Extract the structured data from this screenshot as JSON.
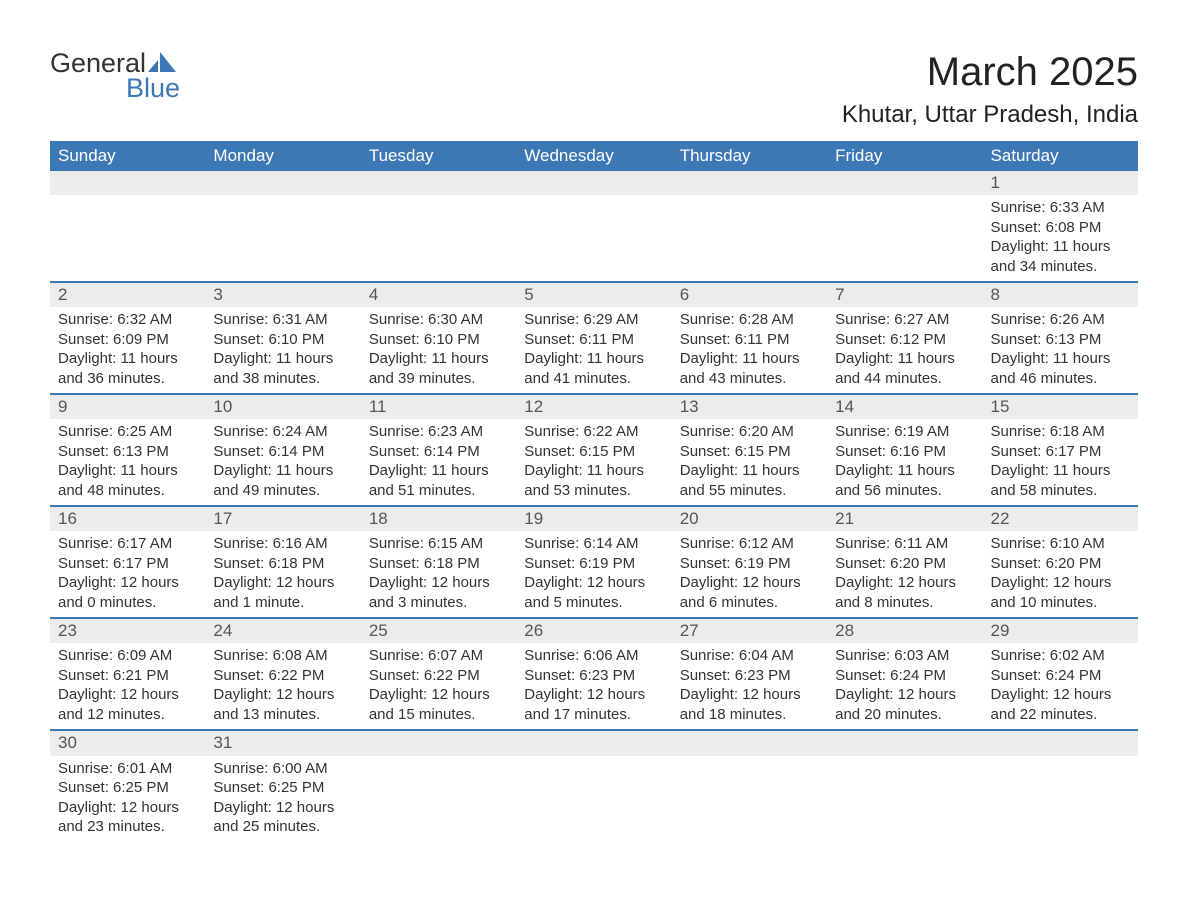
{
  "logo": {
    "text_top": "General",
    "text_bottom": "Blue",
    "icon_color": "#3b78b5"
  },
  "title": "March 2025",
  "subtitle": "Khutar, Uttar Pradesh, India",
  "colors": {
    "header_bg": "#3b78b5",
    "header_text": "#ffffff",
    "row_separator": "#3b78b5",
    "daynum_bg": "#ececec",
    "body_text": "#333333",
    "background": "#ffffff"
  },
  "typography": {
    "title_fontsize": 40,
    "subtitle_fontsize": 24,
    "header_fontsize": 17,
    "daynum_fontsize": 17,
    "detail_fontsize": 15,
    "logo_fontsize": 27
  },
  "columns": [
    "Sunday",
    "Monday",
    "Tuesday",
    "Wednesday",
    "Thursday",
    "Friday",
    "Saturday"
  ],
  "weeks": [
    [
      null,
      null,
      null,
      null,
      null,
      null,
      {
        "day": "1",
        "sunrise": "Sunrise: 6:33 AM",
        "sunset": "Sunset: 6:08 PM",
        "dl1": "Daylight: 11 hours",
        "dl2": "and 34 minutes."
      }
    ],
    [
      {
        "day": "2",
        "sunrise": "Sunrise: 6:32 AM",
        "sunset": "Sunset: 6:09 PM",
        "dl1": "Daylight: 11 hours",
        "dl2": "and 36 minutes."
      },
      {
        "day": "3",
        "sunrise": "Sunrise: 6:31 AM",
        "sunset": "Sunset: 6:10 PM",
        "dl1": "Daylight: 11 hours",
        "dl2": "and 38 minutes."
      },
      {
        "day": "4",
        "sunrise": "Sunrise: 6:30 AM",
        "sunset": "Sunset: 6:10 PM",
        "dl1": "Daylight: 11 hours",
        "dl2": "and 39 minutes."
      },
      {
        "day": "5",
        "sunrise": "Sunrise: 6:29 AM",
        "sunset": "Sunset: 6:11 PM",
        "dl1": "Daylight: 11 hours",
        "dl2": "and 41 minutes."
      },
      {
        "day": "6",
        "sunrise": "Sunrise: 6:28 AM",
        "sunset": "Sunset: 6:11 PM",
        "dl1": "Daylight: 11 hours",
        "dl2": "and 43 minutes."
      },
      {
        "day": "7",
        "sunrise": "Sunrise: 6:27 AM",
        "sunset": "Sunset: 6:12 PM",
        "dl1": "Daylight: 11 hours",
        "dl2": "and 44 minutes."
      },
      {
        "day": "8",
        "sunrise": "Sunrise: 6:26 AM",
        "sunset": "Sunset: 6:13 PM",
        "dl1": "Daylight: 11 hours",
        "dl2": "and 46 minutes."
      }
    ],
    [
      {
        "day": "9",
        "sunrise": "Sunrise: 6:25 AM",
        "sunset": "Sunset: 6:13 PM",
        "dl1": "Daylight: 11 hours",
        "dl2": "and 48 minutes."
      },
      {
        "day": "10",
        "sunrise": "Sunrise: 6:24 AM",
        "sunset": "Sunset: 6:14 PM",
        "dl1": "Daylight: 11 hours",
        "dl2": "and 49 minutes."
      },
      {
        "day": "11",
        "sunrise": "Sunrise: 6:23 AM",
        "sunset": "Sunset: 6:14 PM",
        "dl1": "Daylight: 11 hours",
        "dl2": "and 51 minutes."
      },
      {
        "day": "12",
        "sunrise": "Sunrise: 6:22 AM",
        "sunset": "Sunset: 6:15 PM",
        "dl1": "Daylight: 11 hours",
        "dl2": "and 53 minutes."
      },
      {
        "day": "13",
        "sunrise": "Sunrise: 6:20 AM",
        "sunset": "Sunset: 6:15 PM",
        "dl1": "Daylight: 11 hours",
        "dl2": "and 55 minutes."
      },
      {
        "day": "14",
        "sunrise": "Sunrise: 6:19 AM",
        "sunset": "Sunset: 6:16 PM",
        "dl1": "Daylight: 11 hours",
        "dl2": "and 56 minutes."
      },
      {
        "day": "15",
        "sunrise": "Sunrise: 6:18 AM",
        "sunset": "Sunset: 6:17 PM",
        "dl1": "Daylight: 11 hours",
        "dl2": "and 58 minutes."
      }
    ],
    [
      {
        "day": "16",
        "sunrise": "Sunrise: 6:17 AM",
        "sunset": "Sunset: 6:17 PM",
        "dl1": "Daylight: 12 hours",
        "dl2": "and 0 minutes."
      },
      {
        "day": "17",
        "sunrise": "Sunrise: 6:16 AM",
        "sunset": "Sunset: 6:18 PM",
        "dl1": "Daylight: 12 hours",
        "dl2": "and 1 minute."
      },
      {
        "day": "18",
        "sunrise": "Sunrise: 6:15 AM",
        "sunset": "Sunset: 6:18 PM",
        "dl1": "Daylight: 12 hours",
        "dl2": "and 3 minutes."
      },
      {
        "day": "19",
        "sunrise": "Sunrise: 6:14 AM",
        "sunset": "Sunset: 6:19 PM",
        "dl1": "Daylight: 12 hours",
        "dl2": "and 5 minutes."
      },
      {
        "day": "20",
        "sunrise": "Sunrise: 6:12 AM",
        "sunset": "Sunset: 6:19 PM",
        "dl1": "Daylight: 12 hours",
        "dl2": "and 6 minutes."
      },
      {
        "day": "21",
        "sunrise": "Sunrise: 6:11 AM",
        "sunset": "Sunset: 6:20 PM",
        "dl1": "Daylight: 12 hours",
        "dl2": "and 8 minutes."
      },
      {
        "day": "22",
        "sunrise": "Sunrise: 6:10 AM",
        "sunset": "Sunset: 6:20 PM",
        "dl1": "Daylight: 12 hours",
        "dl2": "and 10 minutes."
      }
    ],
    [
      {
        "day": "23",
        "sunrise": "Sunrise: 6:09 AM",
        "sunset": "Sunset: 6:21 PM",
        "dl1": "Daylight: 12 hours",
        "dl2": "and 12 minutes."
      },
      {
        "day": "24",
        "sunrise": "Sunrise: 6:08 AM",
        "sunset": "Sunset: 6:22 PM",
        "dl1": "Daylight: 12 hours",
        "dl2": "and 13 minutes."
      },
      {
        "day": "25",
        "sunrise": "Sunrise: 6:07 AM",
        "sunset": "Sunset: 6:22 PM",
        "dl1": "Daylight: 12 hours",
        "dl2": "and 15 minutes."
      },
      {
        "day": "26",
        "sunrise": "Sunrise: 6:06 AM",
        "sunset": "Sunset: 6:23 PM",
        "dl1": "Daylight: 12 hours",
        "dl2": "and 17 minutes."
      },
      {
        "day": "27",
        "sunrise": "Sunrise: 6:04 AM",
        "sunset": "Sunset: 6:23 PM",
        "dl1": "Daylight: 12 hours",
        "dl2": "and 18 minutes."
      },
      {
        "day": "28",
        "sunrise": "Sunrise: 6:03 AM",
        "sunset": "Sunset: 6:24 PM",
        "dl1": "Daylight: 12 hours",
        "dl2": "and 20 minutes."
      },
      {
        "day": "29",
        "sunrise": "Sunrise: 6:02 AM",
        "sunset": "Sunset: 6:24 PM",
        "dl1": "Daylight: 12 hours",
        "dl2": "and 22 minutes."
      }
    ],
    [
      {
        "day": "30",
        "sunrise": "Sunrise: 6:01 AM",
        "sunset": "Sunset: 6:25 PM",
        "dl1": "Daylight: 12 hours",
        "dl2": "and 23 minutes."
      },
      {
        "day": "31",
        "sunrise": "Sunrise: 6:00 AM",
        "sunset": "Sunset: 6:25 PM",
        "dl1": "Daylight: 12 hours",
        "dl2": "and 25 minutes."
      },
      null,
      null,
      null,
      null,
      null
    ]
  ]
}
